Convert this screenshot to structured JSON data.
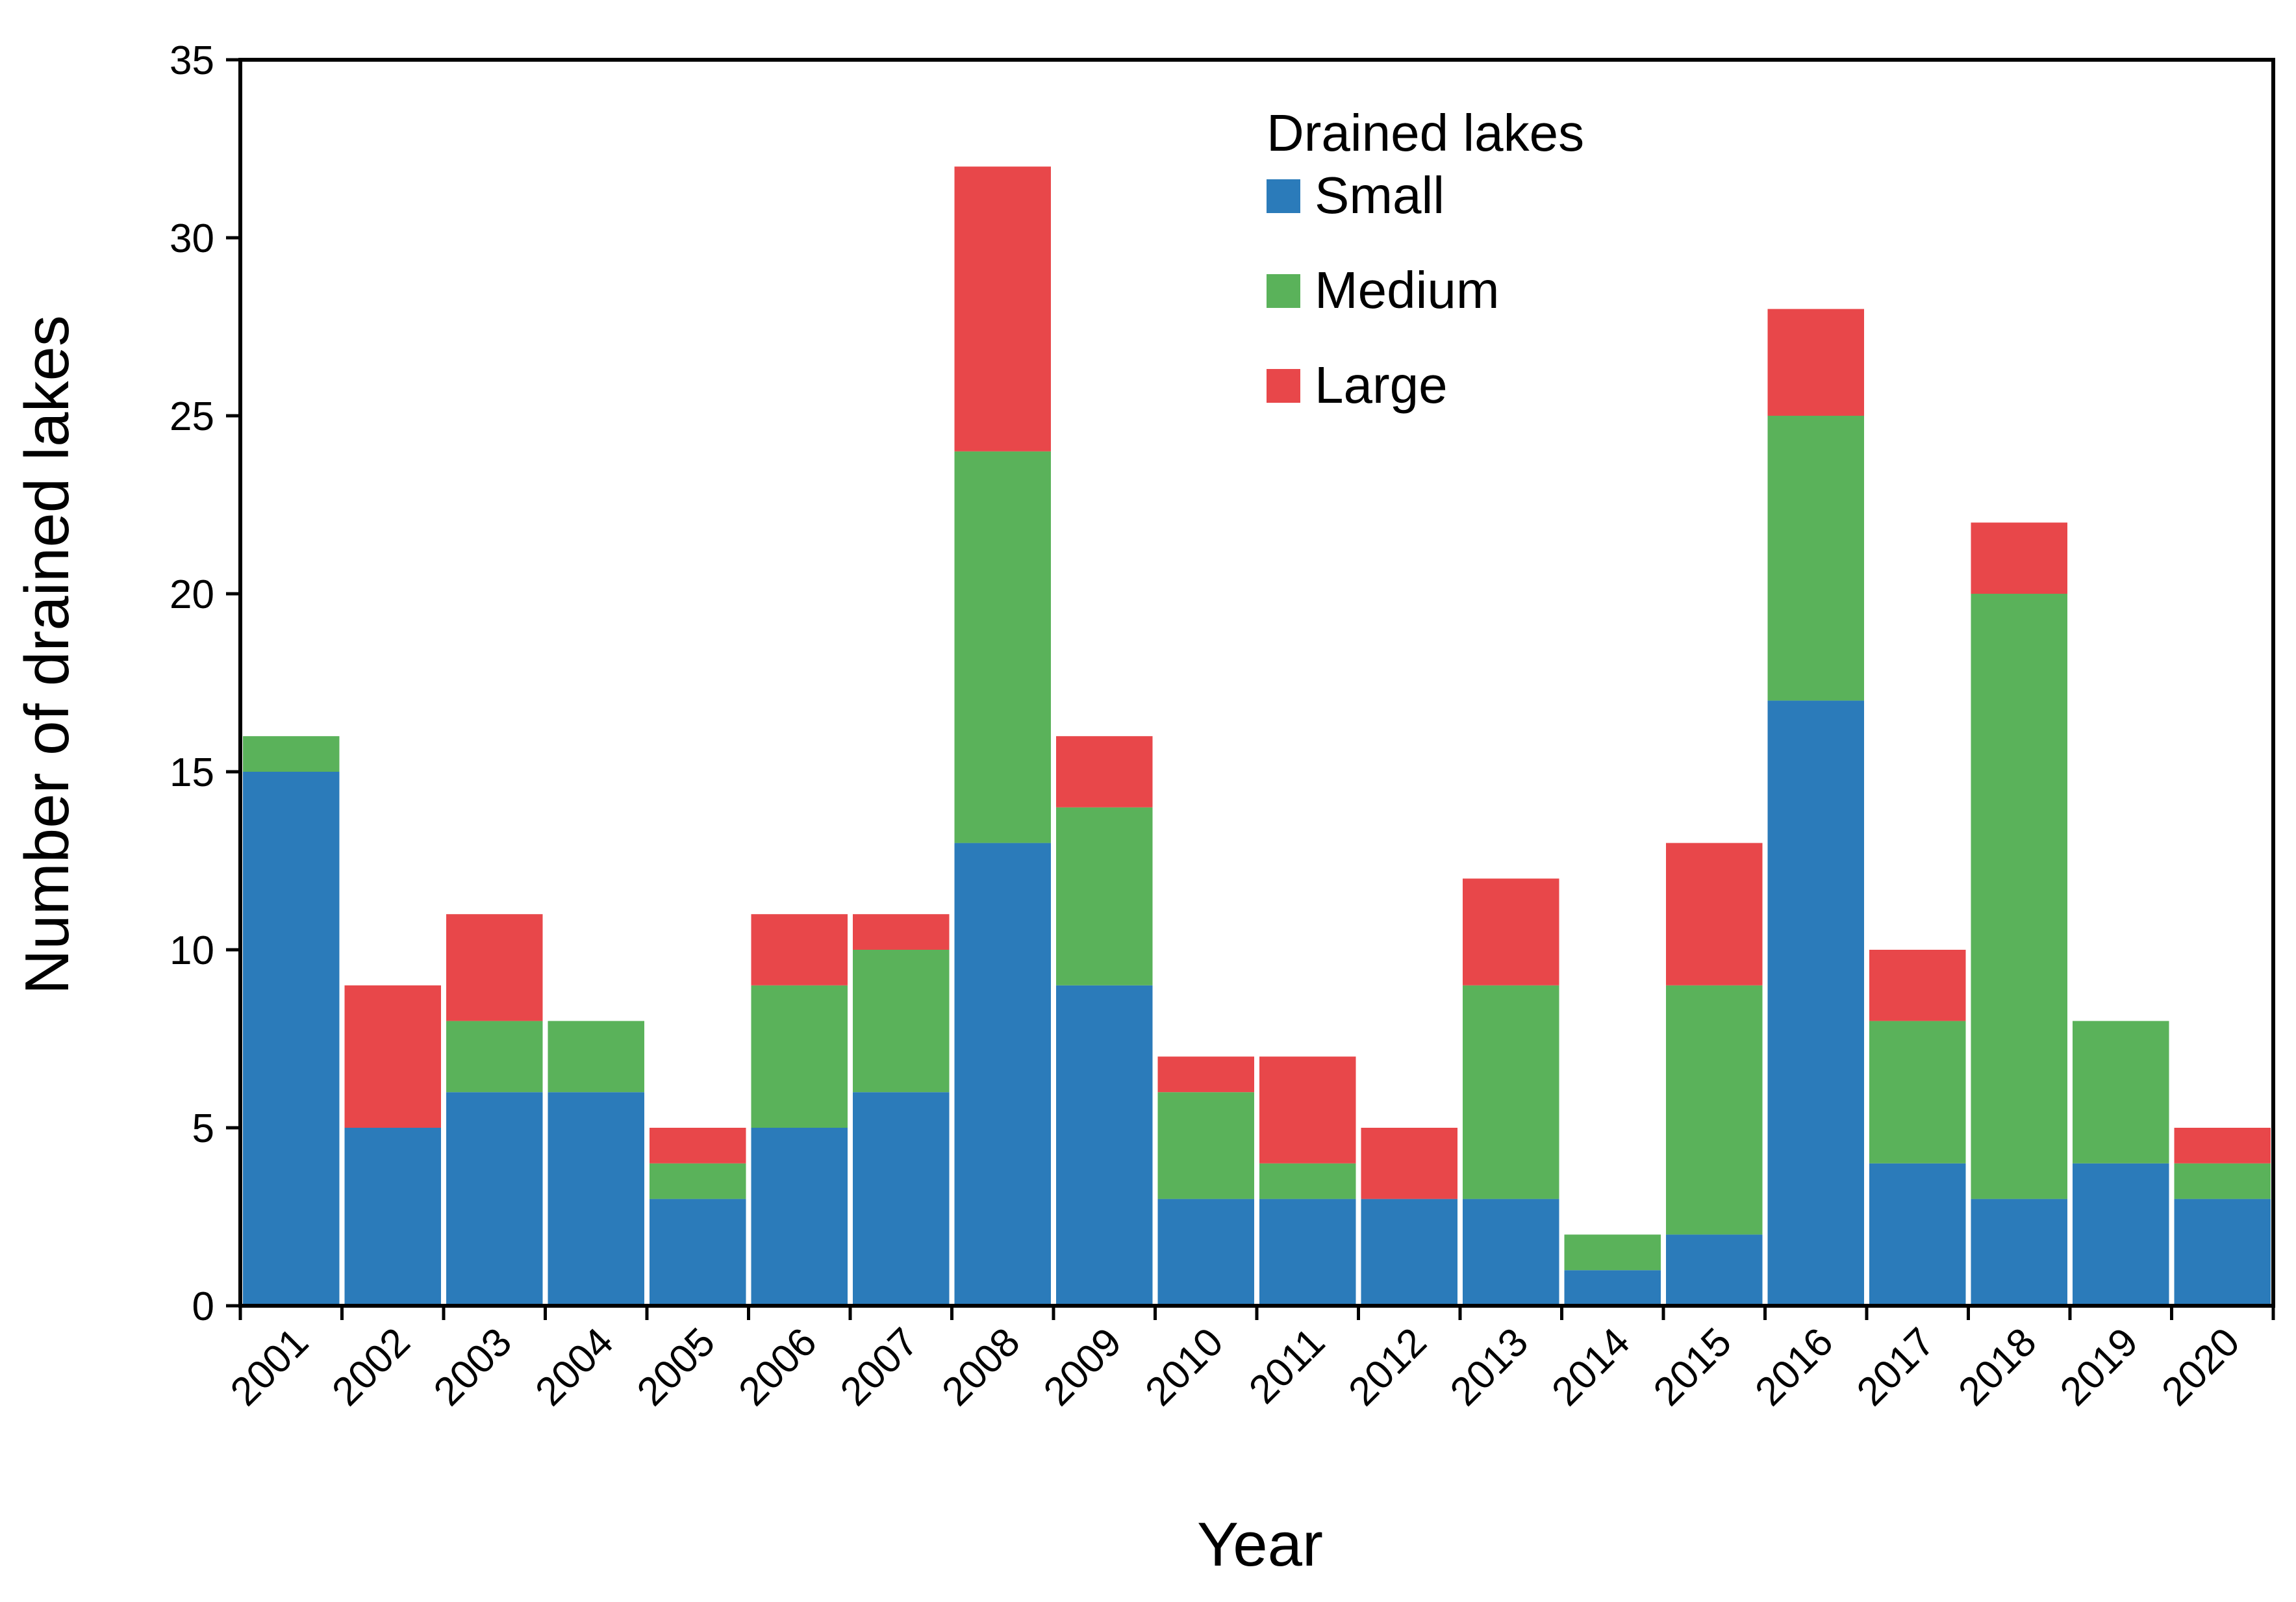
{
  "chart_data": {
    "type": "bar",
    "stacked": true,
    "title": "",
    "xlabel": "Year",
    "ylabel": "Number of drained lakes",
    "ylim": [
      0,
      35
    ],
    "yticks": [
      "0",
      "5",
      "10",
      "15",
      "20",
      "25",
      "30",
      "35"
    ],
    "grid": false,
    "legend": {
      "title": "Drained lakes",
      "placement": "top-right-center"
    },
    "categories": [
      "2001",
      "2002",
      "2003",
      "2004",
      "2005",
      "2006",
      "2007",
      "2008",
      "2009",
      "2010",
      "2011",
      "2012",
      "2013",
      "2014",
      "2015",
      "2016",
      "2017",
      "2018",
      "2019",
      "2020"
    ],
    "series": [
      {
        "name": "Small",
        "color": "#2b7bba",
        "values": [
          15,
          5,
          6,
          6,
          3,
          5,
          6,
          13,
          9,
          3,
          3,
          3,
          3,
          1,
          2,
          17,
          4,
          3,
          4,
          3
        ]
      },
      {
        "name": "Medium",
        "color": "#5ab25a",
        "values": [
          1,
          0,
          2,
          2,
          1,
          4,
          4,
          11,
          5,
          3,
          1,
          0,
          6,
          1,
          7,
          8,
          4,
          17,
          4,
          1
        ]
      },
      {
        "name": "Large",
        "color": "#e8474a",
        "values": [
          0,
          4,
          3,
          0,
          1,
          2,
          1,
          8,
          2,
          1,
          3,
          2,
          3,
          0,
          4,
          3,
          2,
          2,
          0,
          1
        ]
      }
    ]
  }
}
